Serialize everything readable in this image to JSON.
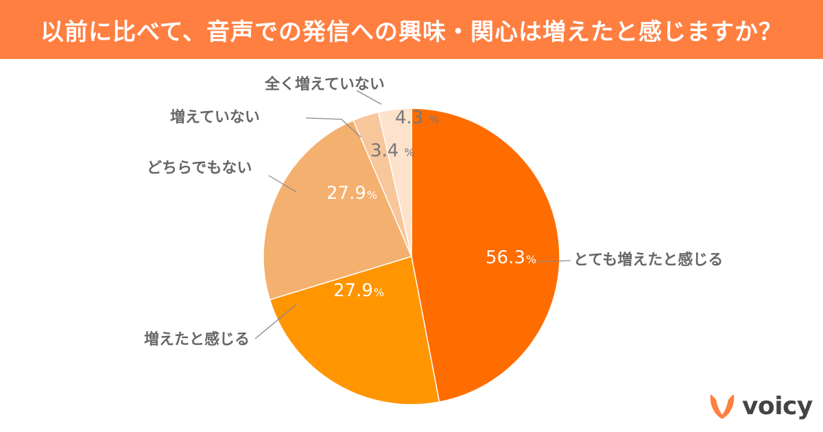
{
  "header": {
    "title": "以前に比べて、音声での発信への興味・関心は増えたと感じますか？"
  },
  "brand": {
    "name": "voicy",
    "accent": "#ff7f41",
    "icon": "voicy-v-icon"
  },
  "chart_data": {
    "type": "pie",
    "title": "以前に比べて、音声での発信への興味・関心は増えたと感じますか？",
    "unit": "%",
    "slices": [
      {
        "label": "とても増えたと感じる",
        "value": 56.3,
        "display": "56.3",
        "color": "#ff6d00"
      },
      {
        "label": "増えたと感じる",
        "value": 27.9,
        "display": "27.9",
        "color": "#ff9500"
      },
      {
        "label": "どちらでもない",
        "value": 27.9,
        "display": "27.9",
        "color": "#f4b06e"
      },
      {
        "label": "増えていない",
        "value": 3.4,
        "display": "3.4",
        "color": "#f7c69b"
      },
      {
        "label": "全く増えていない",
        "value": 4.3,
        "display": "4.3",
        "color": "#fde2cc"
      }
    ]
  }
}
